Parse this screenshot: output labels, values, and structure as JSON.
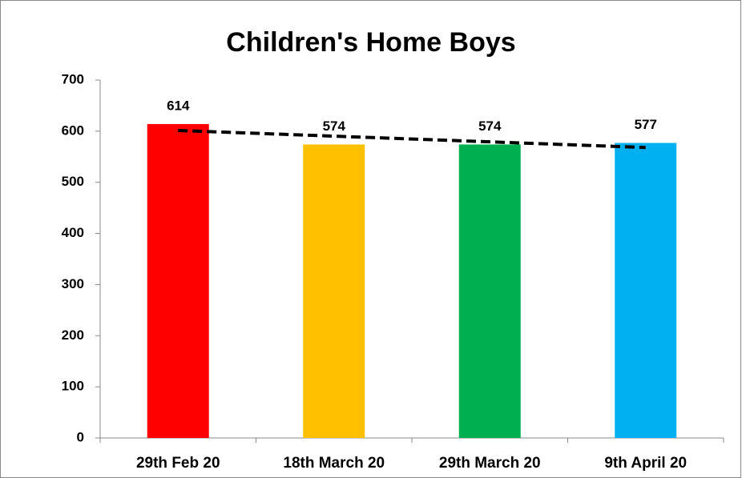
{
  "chart_data": {
    "type": "bar",
    "title": "Children's Home Boys",
    "categories": [
      "29th Feb 20",
      "18th March 20",
      "29th March 20",
      "9th April 20"
    ],
    "values": [
      614,
      574,
      574,
      577
    ],
    "colors": [
      "#ff0000",
      "#ffc000",
      "#00b050",
      "#00b0f0"
    ],
    "ylim": [
      0,
      700
    ],
    "yticks": [
      0,
      100,
      200,
      300,
      400,
      500,
      600,
      700
    ],
    "grid": false,
    "trendline": "linear",
    "trendline_color": "#000000"
  }
}
